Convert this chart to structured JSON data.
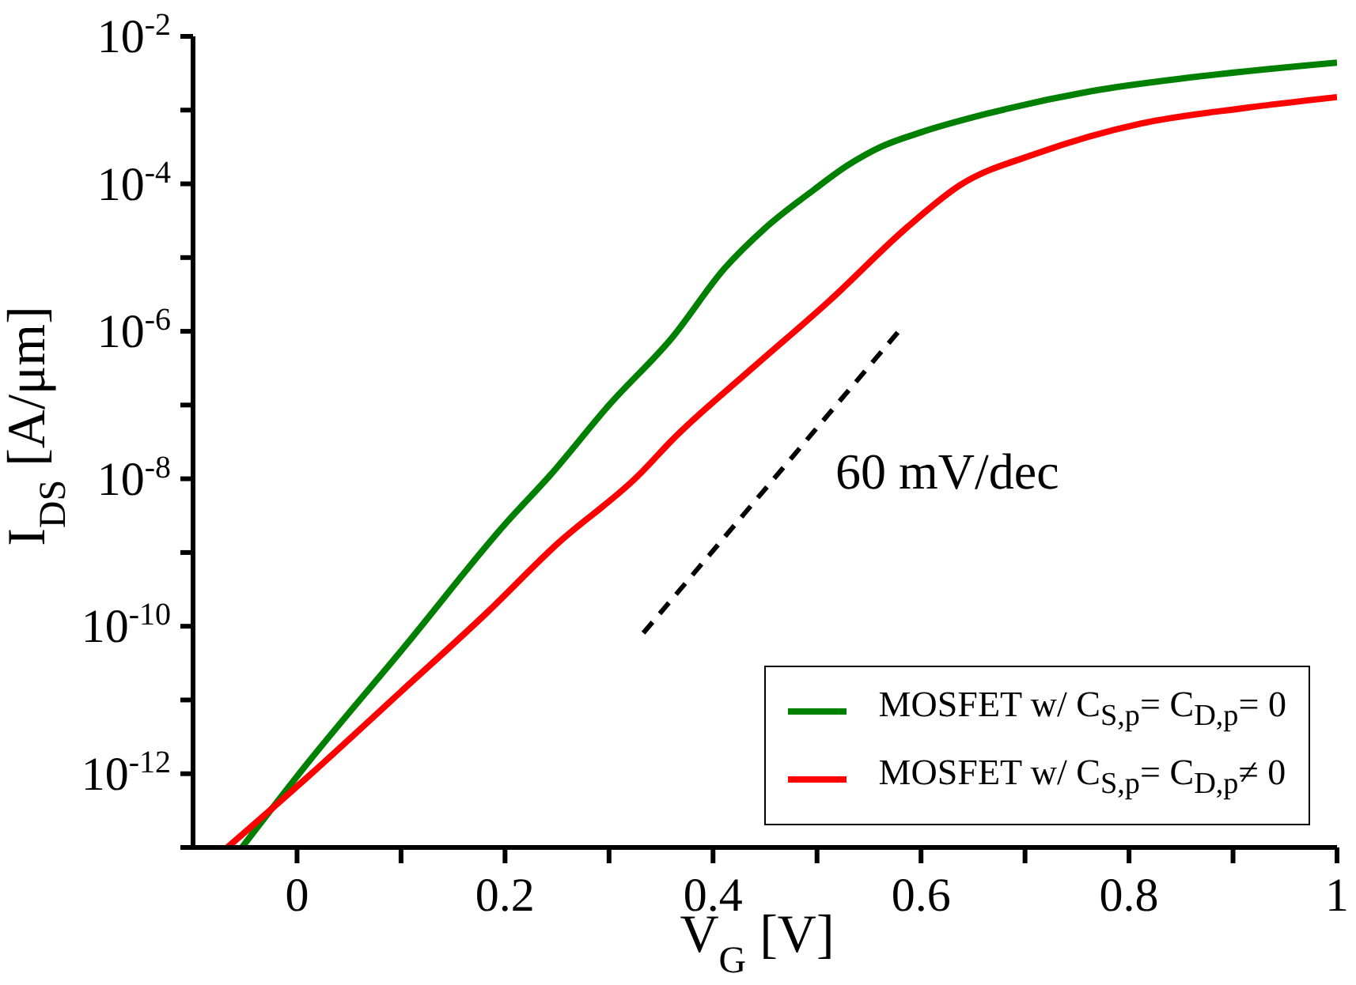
{
  "chart_data": {
    "type": "line",
    "xlabel": "V$_{G}$ [V]",
    "ylabel": "I$_{DS}$ [A/μm]",
    "log": "y",
    "xlim": [
      -0.1,
      1
    ],
    "ylim": [
      1e-13,
      0.01
    ],
    "xticks": [
      0,
      {
        "value": 0.1,
        "label": null
      },
      0.2,
      {
        "value": 0.3,
        "label": null
      },
      0.4,
      {
        "value": 0.5,
        "label": null
      },
      0.6,
      {
        "value": 0.7,
        "label": null
      },
      0.8,
      {
        "value": 0.9,
        "label": null
      },
      1
    ],
    "yticks": [
      {
        "value": 1e-13,
        "label": null
      },
      {
        "value": 1e-12,
        "label": "10$^{-12}$"
      },
      {
        "value": 1e-11,
        "label": null
      },
      {
        "value": 1e-10,
        "label": "10$^{-10}$"
      },
      {
        "value": 1e-09,
        "label": null
      },
      {
        "value": 1e-08,
        "label": "10$^{-8}$"
      },
      {
        "value": 1e-07,
        "label": null
      },
      {
        "value": 1e-06,
        "label": "10$^{-6}$"
      },
      {
        "value": 1e-05,
        "label": null
      },
      {
        "value": 0.0001,
        "label": "10$^{-4}$"
      },
      {
        "value": 0.001,
        "label": null
      },
      {
        "value": 0.01,
        "label": "10$^{-2}$"
      }
    ],
    "legend": "bottom right",
    "marker": "none",
    "series": [
      {
        "name": "MOSFET w/  C$_{S,p}$= C$_{D,p}$= 0",
        "color": "#008000",
        "x": [
          -0.053,
          0.012,
          0.102,
          0.202,
          0.243,
          0.3,
          0.361,
          0.411,
          0.45,
          0.497,
          0.53,
          0.562,
          0.6,
          0.663,
          0.763,
          0.862,
          1.0
        ],
        "values": [
          1e-13,
          1.5e-12,
          5e-11,
          2.6e-09,
          1.1e-08,
          1e-07,
          8.3e-07,
          7.1e-06,
          2.5e-05,
          8.3e-05,
          0.00018,
          0.00032,
          0.0005,
          0.00089,
          0.0018,
          0.0028,
          0.0044
        ]
      },
      {
        "name": "MOSFET w/  C$_{S,p}$= C$_{D,p}$≠ 0",
        "color": "#ff0000",
        "x": [
          -0.067,
          0.012,
          0.1,
          0.182,
          0.25,
          0.328,
          0.362,
          0.437,
          0.512,
          0.587,
          0.637,
          0.712,
          0.812,
          0.912,
          1.0
        ],
        "values": [
          1e-13,
          9.5e-13,
          1.3e-11,
          1.5e-10,
          1.3e-09,
          1.1e-08,
          3.5e-08,
          3.1e-07,
          2.6e-06,
          2.6e-05,
          9.5e-05,
          0.00026,
          0.00066,
          0.00107,
          0.0015
        ]
      },
      {
        "color": "#000000",
        "line_style": "dashed",
        "x": [
          0.333,
          0.578
        ],
        "values": [
          8.1e-11,
          9.8e-07
        ]
      }
    ],
    "annotations": [
      "60 mV/dec"
    ]
  }
}
